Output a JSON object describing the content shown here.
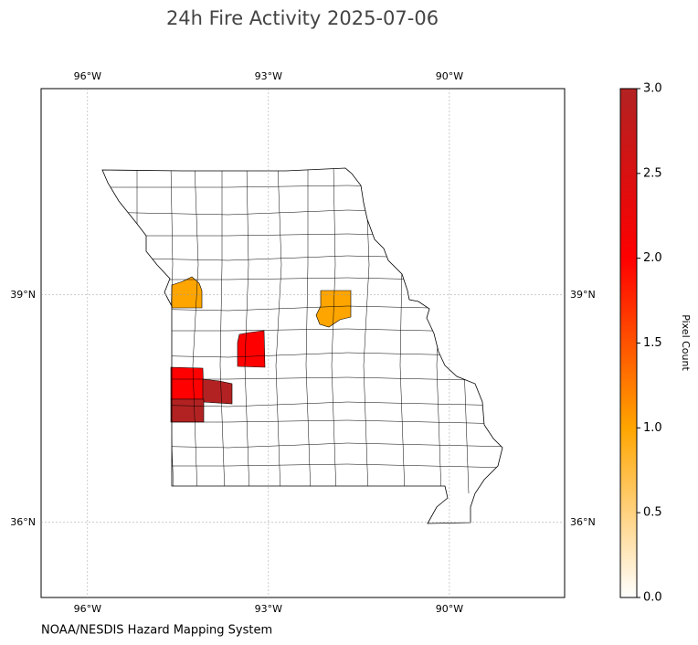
{
  "chart_data": {
    "type": "choropleth",
    "title": "24h Fire Activity 2025-07-06",
    "source": "NOAA/NESDIS Hazard Mapping System",
    "values": [
      1,
      1,
      2,
      2,
      3,
      3
    ],
    "xlim": [
      -96.77,
      -88.09
    ],
    "ylim": [
      35.01,
      41.72
    ],
    "xticks": [
      {
        "value": -96,
        "label": "96°W"
      },
      {
        "value": -93,
        "label": "93°W"
      },
      {
        "value": -90,
        "label": "90°W"
      }
    ],
    "yticks": [
      {
        "value": 36,
        "label": "36°N"
      },
      {
        "value": 39,
        "label": "39°N"
      }
    ],
    "grid": true,
    "colorbar": {
      "label": "Pixel Count",
      "lim": [
        0,
        3
      ],
      "ticks": [
        {
          "value": 0,
          "label": "0.0"
        },
        {
          "value": 0.5,
          "label": "0.5"
        },
        {
          "value": 1,
          "label": "1.0"
        },
        {
          "value": 1.5,
          "label": "1.5"
        },
        {
          "value": 2,
          "label": "2.0"
        },
        {
          "value": 2.5,
          "label": "2.5"
        },
        {
          "value": 3,
          "label": "3.0"
        }
      ],
      "colors": [
        "#ffffff",
        "#ffa500",
        "#ff0000",
        "#b22222"
      ]
    }
  }
}
